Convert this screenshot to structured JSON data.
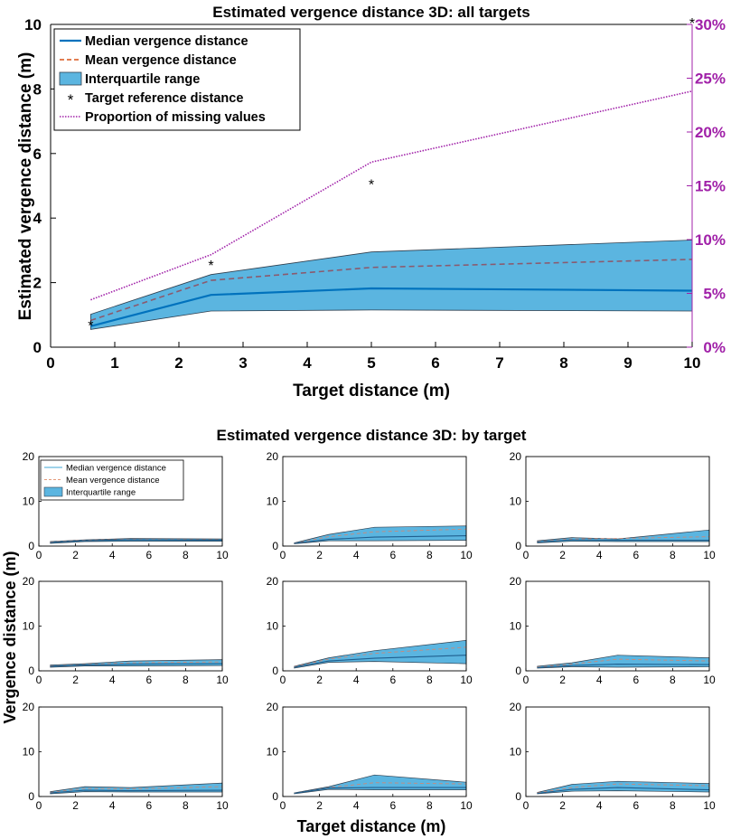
{
  "colors": {
    "median": "#0072BD",
    "mean": "#D95319",
    "iqr_fill": "#5BB5E0",
    "iqr_edge": "#2F3F4F",
    "target_ref": "#000000",
    "missing": "#A020A8",
    "axis": "#000000"
  },
  "chart_data": [
    {
      "type": "line",
      "title": "Estimated vergence distance 3D: all targets",
      "xlabel": "Target distance (m)",
      "ylabel": "Estimated vergence distance (m)",
      "xlim": [
        0,
        10
      ],
      "ylim": [
        0,
        10
      ],
      "x_ticks": [
        "0",
        "1",
        "2",
        "3",
        "4",
        "5",
        "6",
        "7",
        "8",
        "9",
        "10"
      ],
      "y_ticks": [
        "0",
        "2",
        "4",
        "6",
        "8",
        "10"
      ],
      "y2_label": "Proportion of missing values",
      "y2lim": [
        0,
        30
      ],
      "y2_ticks": [
        "0%",
        "5%",
        "10%",
        "15%",
        "20%",
        "25%",
        "30%"
      ],
      "x": [
        0.625,
        2.5,
        5,
        10
      ],
      "series": [
        {
          "name": "Median vergence distance",
          "style": "solid",
          "values": [
            0.65,
            1.62,
            1.82,
            1.75
          ]
        },
        {
          "name": "Mean vergence distance",
          "style": "dashed",
          "values": [
            0.83,
            2.07,
            2.47,
            2.72
          ]
        },
        {
          "name": "Interquartile range",
          "style": "band",
          "lower": [
            0.55,
            1.12,
            1.15,
            1.12
          ],
          "upper": [
            1.02,
            2.25,
            2.95,
            3.32
          ]
        },
        {
          "name": "Target reference distance",
          "style": "marker",
          "values": [
            0.625,
            2.5,
            5,
            10
          ]
        },
        {
          "name": "Proportion of missing values",
          "style": "dotted",
          "axis": "right",
          "values": [
            4.4,
            8.6,
            17.2,
            23.8
          ]
        }
      ],
      "legend": [
        "Median vergence distance",
        "Mean vergence distance",
        "Interquartile range",
        "Target reference distance",
        "Proportion of missing values"
      ],
      "legend_position": "top-left"
    },
    {
      "type": "line",
      "title": "Estimated vergence distance 3D: by target",
      "xlabel": "Target distance (m)",
      "ylabel": "Vergence distance (m)",
      "xlim": [
        0,
        10
      ],
      "ylim": [
        0,
        20
      ],
      "x_ticks": [
        "0",
        "2",
        "4",
        "6",
        "8",
        "10"
      ],
      "y_ticks": [
        "0",
        "10",
        "20"
      ],
      "legend": [
        "Median vergence distance",
        "Mean vergence distance",
        "Interquartile range"
      ],
      "legend_position": "top-left (first panel)",
      "x": [
        0.625,
        2.5,
        5,
        10
      ],
      "panels": [
        {
          "median": [
            0.8,
            1.2,
            1.4,
            1.3
          ],
          "mean": [
            0.9,
            1.3,
            1.5,
            1.4
          ],
          "lower": [
            0.6,
            1.0,
            1.1,
            1.1
          ],
          "upper": [
            1.0,
            1.4,
            1.7,
            1.6
          ]
        },
        {
          "median": [
            0.6,
            1.5,
            2.0,
            2.3
          ],
          "mean": [
            0.6,
            2.1,
            3.2,
            3.8
          ],
          "lower": [
            0.5,
            1.2,
            1.2,
            1.3
          ],
          "upper": [
            0.7,
            2.6,
            4.2,
            4.5
          ]
        },
        {
          "median": [
            0.9,
            1.4,
            1.3,
            1.3
          ],
          "mean": [
            1.0,
            1.6,
            1.7,
            2.1
          ],
          "lower": [
            0.7,
            1.1,
            1.0,
            1.0
          ],
          "upper": [
            1.2,
            1.9,
            1.6,
            3.6
          ]
        },
        {
          "median": [
            1.0,
            1.3,
            1.5,
            1.6
          ],
          "mean": [
            1.1,
            1.4,
            1.8,
            2.0
          ],
          "lower": [
            0.8,
            1.1,
            1.1,
            1.2
          ],
          "upper": [
            1.3,
            1.6,
            2.2,
            2.5
          ]
        },
        {
          "median": [
            0.8,
            2.2,
            2.8,
            3.5
          ],
          "mean": [
            0.9,
            2.6,
            3.9,
            5.3
          ],
          "lower": [
            0.6,
            1.9,
            2.1,
            1.6
          ],
          "upper": [
            1.0,
            2.9,
            4.5,
            6.8
          ]
        },
        {
          "median": [
            0.7,
            1.2,
            1.5,
            1.4
          ],
          "mean": [
            0.8,
            1.5,
            2.6,
            2.2
          ],
          "lower": [
            0.6,
            0.9,
            0.8,
            0.9
          ],
          "upper": [
            1.0,
            1.8,
            3.5,
            2.9
          ]
        },
        {
          "median": [
            0.8,
            1.4,
            1.3,
            1.4
          ],
          "mean": [
            0.9,
            1.8,
            1.7,
            2.2
          ],
          "lower": [
            0.6,
            1.1,
            1.0,
            1.0
          ],
          "upper": [
            1.1,
            2.2,
            2.0,
            3.0
          ]
        },
        {
          "median": [
            0.7,
            1.9,
            2.0,
            2.0
          ],
          "mean": [
            0.7,
            2.0,
            3.1,
            2.8
          ],
          "lower": [
            0.6,
            1.6,
            1.5,
            1.5
          ],
          "upper": [
            0.8,
            2.2,
            4.8,
            3.2
          ]
        },
        {
          "median": [
            0.7,
            1.6,
            2.0,
            1.5
          ],
          "mean": [
            0.8,
            2.0,
            2.8,
            2.4
          ],
          "lower": [
            0.6,
            1.2,
            1.3,
            1.0
          ],
          "upper": [
            0.9,
            2.7,
            3.4,
            2.9
          ]
        }
      ]
    }
  ]
}
